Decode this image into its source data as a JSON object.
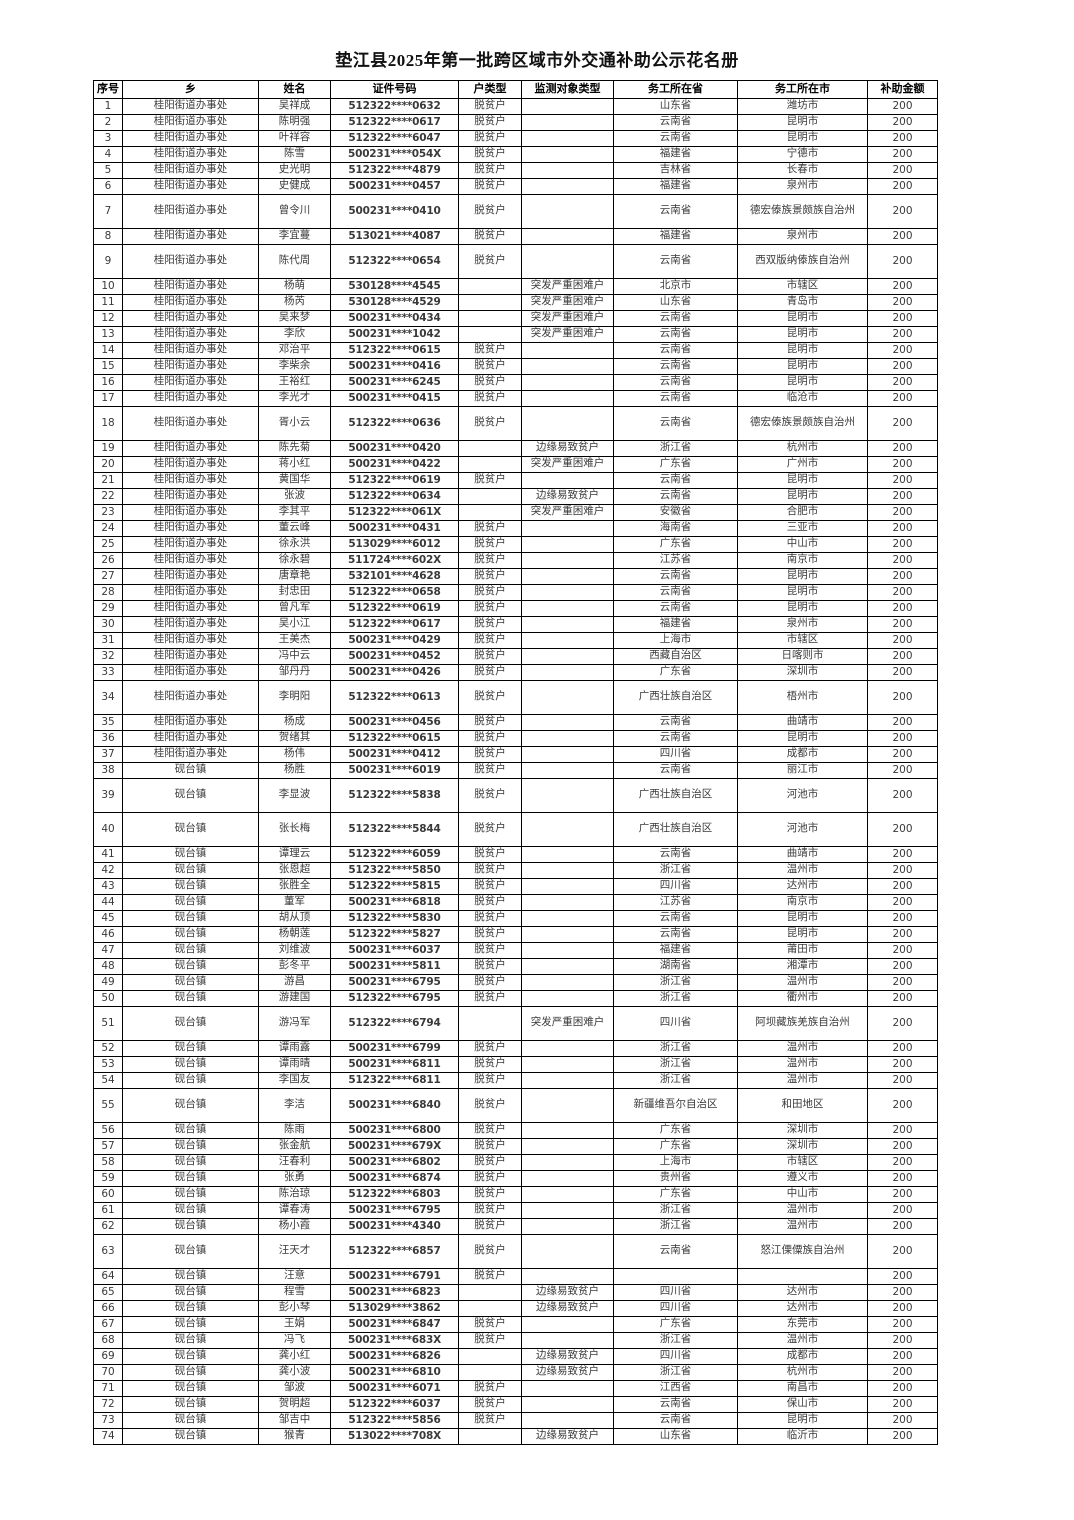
{
  "title": "垫江县2025年第一批跨区域市外交通补助公示花名册",
  "table": {
    "headers": [
      "序号",
      "乡",
      "姓名",
      "证件号码",
      "户类型",
      "监测对象类型",
      "务工所在省",
      "务工所在市",
      "补助金额"
    ],
    "rows": [
      [
        "1",
        "桂阳街道办事处",
        "吴祥成",
        "512322****0632",
        "脱贫户",
        "",
        "山东省",
        "潍坊市",
        "200"
      ],
      [
        "2",
        "桂阳街道办事处",
        "陈明强",
        "512322****0617",
        "脱贫户",
        "",
        "云南省",
        "昆明市",
        "200"
      ],
      [
        "3",
        "桂阳街道办事处",
        "叶祥容",
        "512322****6047",
        "脱贫户",
        "",
        "云南省",
        "昆明市",
        "200"
      ],
      [
        "4",
        "桂阳街道办事处",
        "陈雪",
        "500231****054X",
        "脱贫户",
        "",
        "福建省",
        "宁德市",
        "200"
      ],
      [
        "5",
        "桂阳街道办事处",
        "史光明",
        "512322****4879",
        "脱贫户",
        "",
        "吉林省",
        "长春市",
        "200"
      ],
      [
        "6",
        "桂阳街道办事处",
        "史健成",
        "500231****0457",
        "脱贫户",
        "",
        "福建省",
        "泉州市",
        "200"
      ],
      [
        "7",
        "桂阳街道办事处",
        "曾令川",
        "500231****0410",
        "脱贫户",
        "",
        "云南省",
        "德宏傣族景颇族自治州",
        "200"
      ],
      [
        "8",
        "桂阳街道办事处",
        "李宜蔓",
        "513021****4087",
        "脱贫户",
        "",
        "福建省",
        "泉州市",
        "200"
      ],
      [
        "9",
        "桂阳街道办事处",
        "陈代周",
        "512322****0654",
        "脱贫户",
        "",
        "云南省",
        "西双版纳傣族自治州",
        "200"
      ],
      [
        "10",
        "桂阳街道办事处",
        "杨萌",
        "530128****4545",
        "",
        "突发严重困难户",
        "北京市",
        "市辖区",
        "200"
      ],
      [
        "11",
        "桂阳街道办事处",
        "杨芮",
        "530128****4529",
        "",
        "突发严重困难户",
        "山东省",
        "青岛市",
        "200"
      ],
      [
        "12",
        "桂阳街道办事处",
        "吴来梦",
        "500231****0434",
        "",
        "突发严重困难户",
        "云南省",
        "昆明市",
        "200"
      ],
      [
        "13",
        "桂阳街道办事处",
        "李欣",
        "500231****1042",
        "",
        "突发严重困难户",
        "云南省",
        "昆明市",
        "200"
      ],
      [
        "14",
        "桂阳街道办事处",
        "邓治平",
        "512322****0615",
        "脱贫户",
        "",
        "云南省",
        "昆明市",
        "200"
      ],
      [
        "15",
        "桂阳街道办事处",
        "李柴余",
        "500231****0416",
        "脱贫户",
        "",
        "云南省",
        "昆明市",
        "200"
      ],
      [
        "16",
        "桂阳街道办事处",
        "王裕红",
        "500231****6245",
        "脱贫户",
        "",
        "云南省",
        "昆明市",
        "200"
      ],
      [
        "17",
        "桂阳街道办事处",
        "李光才",
        "500231****0415",
        "脱贫户",
        "",
        "云南省",
        "临沧市",
        "200"
      ],
      [
        "18",
        "桂阳街道办事处",
        "胥小云",
        "512322****0636",
        "脱贫户",
        "",
        "云南省",
        "德宏傣族景颇族自治州",
        "200"
      ],
      [
        "19",
        "桂阳街道办事处",
        "陈先菊",
        "500231****0420",
        "",
        "边缘易致贫户",
        "浙江省",
        "杭州市",
        "200"
      ],
      [
        "20",
        "桂阳街道办事处",
        "蒋小红",
        "500231****0422",
        "",
        "突发严重困难户",
        "广东省",
        "广州市",
        "200"
      ],
      [
        "21",
        "桂阳街道办事处",
        "黄国华",
        "512322****0619",
        "脱贫户",
        "",
        "云南省",
        "昆明市",
        "200"
      ],
      [
        "22",
        "桂阳街道办事处",
        "张波",
        "512322****0634",
        "",
        "边缘易致贫户",
        "云南省",
        "昆明市",
        "200"
      ],
      [
        "23",
        "桂阳街道办事处",
        "李其平",
        "512322****061X",
        "",
        "突发严重困难户",
        "安徽省",
        "合肥市",
        "200"
      ],
      [
        "24",
        "桂阳街道办事处",
        "董云峰",
        "500231****0431",
        "脱贫户",
        "",
        "海南省",
        "三亚市",
        "200"
      ],
      [
        "25",
        "桂阳街道办事处",
        "徐永洪",
        "513029****6012",
        "脱贫户",
        "",
        "广东省",
        "中山市",
        "200"
      ],
      [
        "26",
        "桂阳街道办事处",
        "徐永碧",
        "511724****602X",
        "脱贫户",
        "",
        "江苏省",
        "南京市",
        "200"
      ],
      [
        "27",
        "桂阳街道办事处",
        "唐章艳",
        "532101****4628",
        "脱贫户",
        "",
        "云南省",
        "昆明市",
        "200"
      ],
      [
        "28",
        "桂阳街道办事处",
        "封忠田",
        "512322****0658",
        "脱贫户",
        "",
        "云南省",
        "昆明市",
        "200"
      ],
      [
        "29",
        "桂阳街道办事处",
        "曾凡军",
        "512322****0619",
        "脱贫户",
        "",
        "云南省",
        "昆明市",
        "200"
      ],
      [
        "30",
        "桂阳街道办事处",
        "吴小江",
        "512322****0617",
        "脱贫户",
        "",
        "福建省",
        "泉州市",
        "200"
      ],
      [
        "31",
        "桂阳街道办事处",
        "王美杰",
        "500231****0429",
        "脱贫户",
        "",
        "上海市",
        "市辖区",
        "200"
      ],
      [
        "32",
        "桂阳街道办事处",
        "冯中云",
        "500231****0452",
        "脱贫户",
        "",
        "西藏自治区",
        "日喀则市",
        "200"
      ],
      [
        "33",
        "桂阳街道办事处",
        "邹丹丹",
        "500231****0426",
        "脱贫户",
        "",
        "广东省",
        "深圳市",
        "200"
      ],
      [
        "34",
        "桂阳街道办事处",
        "李明阳",
        "512322****0613",
        "脱贫户",
        "",
        "广西壮族自治区",
        "梧州市",
        "200"
      ],
      [
        "35",
        "桂阳街道办事处",
        "杨成",
        "500231****0456",
        "脱贫户",
        "",
        "云南省",
        "曲靖市",
        "200"
      ],
      [
        "36",
        "桂阳街道办事处",
        "贺绪其",
        "512322****0615",
        "脱贫户",
        "",
        "云南省",
        "昆明市",
        "200"
      ],
      [
        "37",
        "桂阳街道办事处",
        "杨伟",
        "500231****0412",
        "脱贫户",
        "",
        "四川省",
        "成都市",
        "200"
      ],
      [
        "38",
        "砚台镇",
        "杨胜",
        "500231****6019",
        "脱贫户",
        "",
        "云南省",
        "丽江市",
        "200"
      ],
      [
        "39",
        "砚台镇",
        "李显波",
        "512322****5838",
        "脱贫户",
        "",
        "广西壮族自治区",
        "河池市",
        "200"
      ],
      [
        "40",
        "砚台镇",
        "张长梅",
        "512322****5844",
        "脱贫户",
        "",
        "广西壮族自治区",
        "河池市",
        "200"
      ],
      [
        "41",
        "砚台镇",
        "谭理云",
        "512322****6059",
        "脱贫户",
        "",
        "云南省",
        "曲靖市",
        "200"
      ],
      [
        "42",
        "砚台镇",
        "张恩超",
        "512322****5850",
        "脱贫户",
        "",
        "浙江省",
        "温州市",
        "200"
      ],
      [
        "43",
        "砚台镇",
        "张胜全",
        "512322****5815",
        "脱贫户",
        "",
        "四川省",
        "达州市",
        "200"
      ],
      [
        "44",
        "砚台镇",
        "董军",
        "500231****6818",
        "脱贫户",
        "",
        "江苏省",
        "南京市",
        "200"
      ],
      [
        "45",
        "砚台镇",
        "胡从顶",
        "512322****5830",
        "脱贫户",
        "",
        "云南省",
        "昆明市",
        "200"
      ],
      [
        "46",
        "砚台镇",
        "杨朝莲",
        "512322****5827",
        "脱贫户",
        "",
        "云南省",
        "昆明市",
        "200"
      ],
      [
        "47",
        "砚台镇",
        "刘维波",
        "500231****6037",
        "脱贫户",
        "",
        "福建省",
        "莆田市",
        "200"
      ],
      [
        "48",
        "砚台镇",
        "彭冬平",
        "500231****5811",
        "脱贫户",
        "",
        "湖南省",
        "湘潭市",
        "200"
      ],
      [
        "49",
        "砚台镇",
        "游昌",
        "500231****6795",
        "脱贫户",
        "",
        "浙江省",
        "温州市",
        "200"
      ],
      [
        "50",
        "砚台镇",
        "游建国",
        "512322****6795",
        "脱贫户",
        "",
        "浙江省",
        "衢州市",
        "200"
      ],
      [
        "51",
        "砚台镇",
        "游冯军",
        "512322****6794",
        "",
        "突发严重困难户",
        "四川省",
        "阿坝藏族羌族自治州",
        "200"
      ],
      [
        "52",
        "砚台镇",
        "谭雨露",
        "500231****6799",
        "脱贫户",
        "",
        "浙江省",
        "温州市",
        "200"
      ],
      [
        "53",
        "砚台镇",
        "谭雨晴",
        "500231****6811",
        "脱贫户",
        "",
        "浙江省",
        "温州市",
        "200"
      ],
      [
        "54",
        "砚台镇",
        "李国友",
        "512322****6811",
        "脱贫户",
        "",
        "浙江省",
        "温州市",
        "200"
      ],
      [
        "55",
        "砚台镇",
        "李洁",
        "500231****6840",
        "脱贫户",
        "",
        "新疆维吾尔自治区",
        "和田地区",
        "200"
      ],
      [
        "56",
        "砚台镇",
        "陈雨",
        "500231****6800",
        "脱贫户",
        "",
        "广东省",
        "深圳市",
        "200"
      ],
      [
        "57",
        "砚台镇",
        "张金航",
        "500231****679X",
        "脱贫户",
        "",
        "广东省",
        "深圳市",
        "200"
      ],
      [
        "58",
        "砚台镇",
        "汪春利",
        "500231****6802",
        "脱贫户",
        "",
        "上海市",
        "市辖区",
        "200"
      ],
      [
        "59",
        "砚台镇",
        "张勇",
        "500231****6874",
        "脱贫户",
        "",
        "贵州省",
        "遵义市",
        "200"
      ],
      [
        "60",
        "砚台镇",
        "陈治琼",
        "512322****6803",
        "脱贫户",
        "",
        "广东省",
        "中山市",
        "200"
      ],
      [
        "61",
        "砚台镇",
        "谭春涛",
        "500231****6795",
        "脱贫户",
        "",
        "浙江省",
        "温州市",
        "200"
      ],
      [
        "62",
        "砚台镇",
        "杨小霞",
        "500231****4340",
        "脱贫户",
        "",
        "浙江省",
        "温州市",
        "200"
      ],
      [
        "63",
        "砚台镇",
        "汪天才",
        "512322****6857",
        "脱贫户",
        "",
        "云南省",
        "怒江傈僳族自治州",
        "200"
      ],
      [
        "64",
        "砚台镇",
        "汪意",
        "500231****6791",
        "脱贫户",
        "",
        "",
        "",
        "200"
      ],
      [
        "65",
        "砚台镇",
        "程雪",
        "500231****6823",
        "",
        "边缘易致贫户",
        "四川省",
        "达州市",
        "200"
      ],
      [
        "66",
        "砚台镇",
        "彭小琴",
        "513029****3862",
        "",
        "边缘易致贫户",
        "四川省",
        "达州市",
        "200"
      ],
      [
        "67",
        "砚台镇",
        "王娟",
        "500231****6847",
        "脱贫户",
        "",
        "广东省",
        "东莞市",
        "200"
      ],
      [
        "68",
        "砚台镇",
        "冯飞",
        "500231****683X",
        "脱贫户",
        "",
        "浙江省",
        "温州市",
        "200"
      ],
      [
        "69",
        "砚台镇",
        "龚小红",
        "500231****6826",
        "",
        "边缘易致贫户",
        "四川省",
        "成都市",
        "200"
      ],
      [
        "70",
        "砚台镇",
        "龚小波",
        "500231****6810",
        "",
        "边缘易致贫户",
        "浙江省",
        "杭州市",
        "200"
      ],
      [
        "71",
        "砚台镇",
        "邹波",
        "500231****6071",
        "脱贫户",
        "",
        "江西省",
        "南昌市",
        "200"
      ],
      [
        "72",
        "砚台镇",
        "贺明超",
        "512322****6037",
        "脱贫户",
        "",
        "云南省",
        "保山市",
        "200"
      ],
      [
        "73",
        "砚台镇",
        "邹吉中",
        "512322****5856",
        "脱贫户",
        "",
        "云南省",
        "昆明市",
        "200"
      ],
      [
        "74",
        "砚台镇",
        "猴青",
        "513022****708X",
        "",
        "边缘易致贫户",
        "山东省",
        "临沂市",
        "200"
      ]
    ]
  }
}
